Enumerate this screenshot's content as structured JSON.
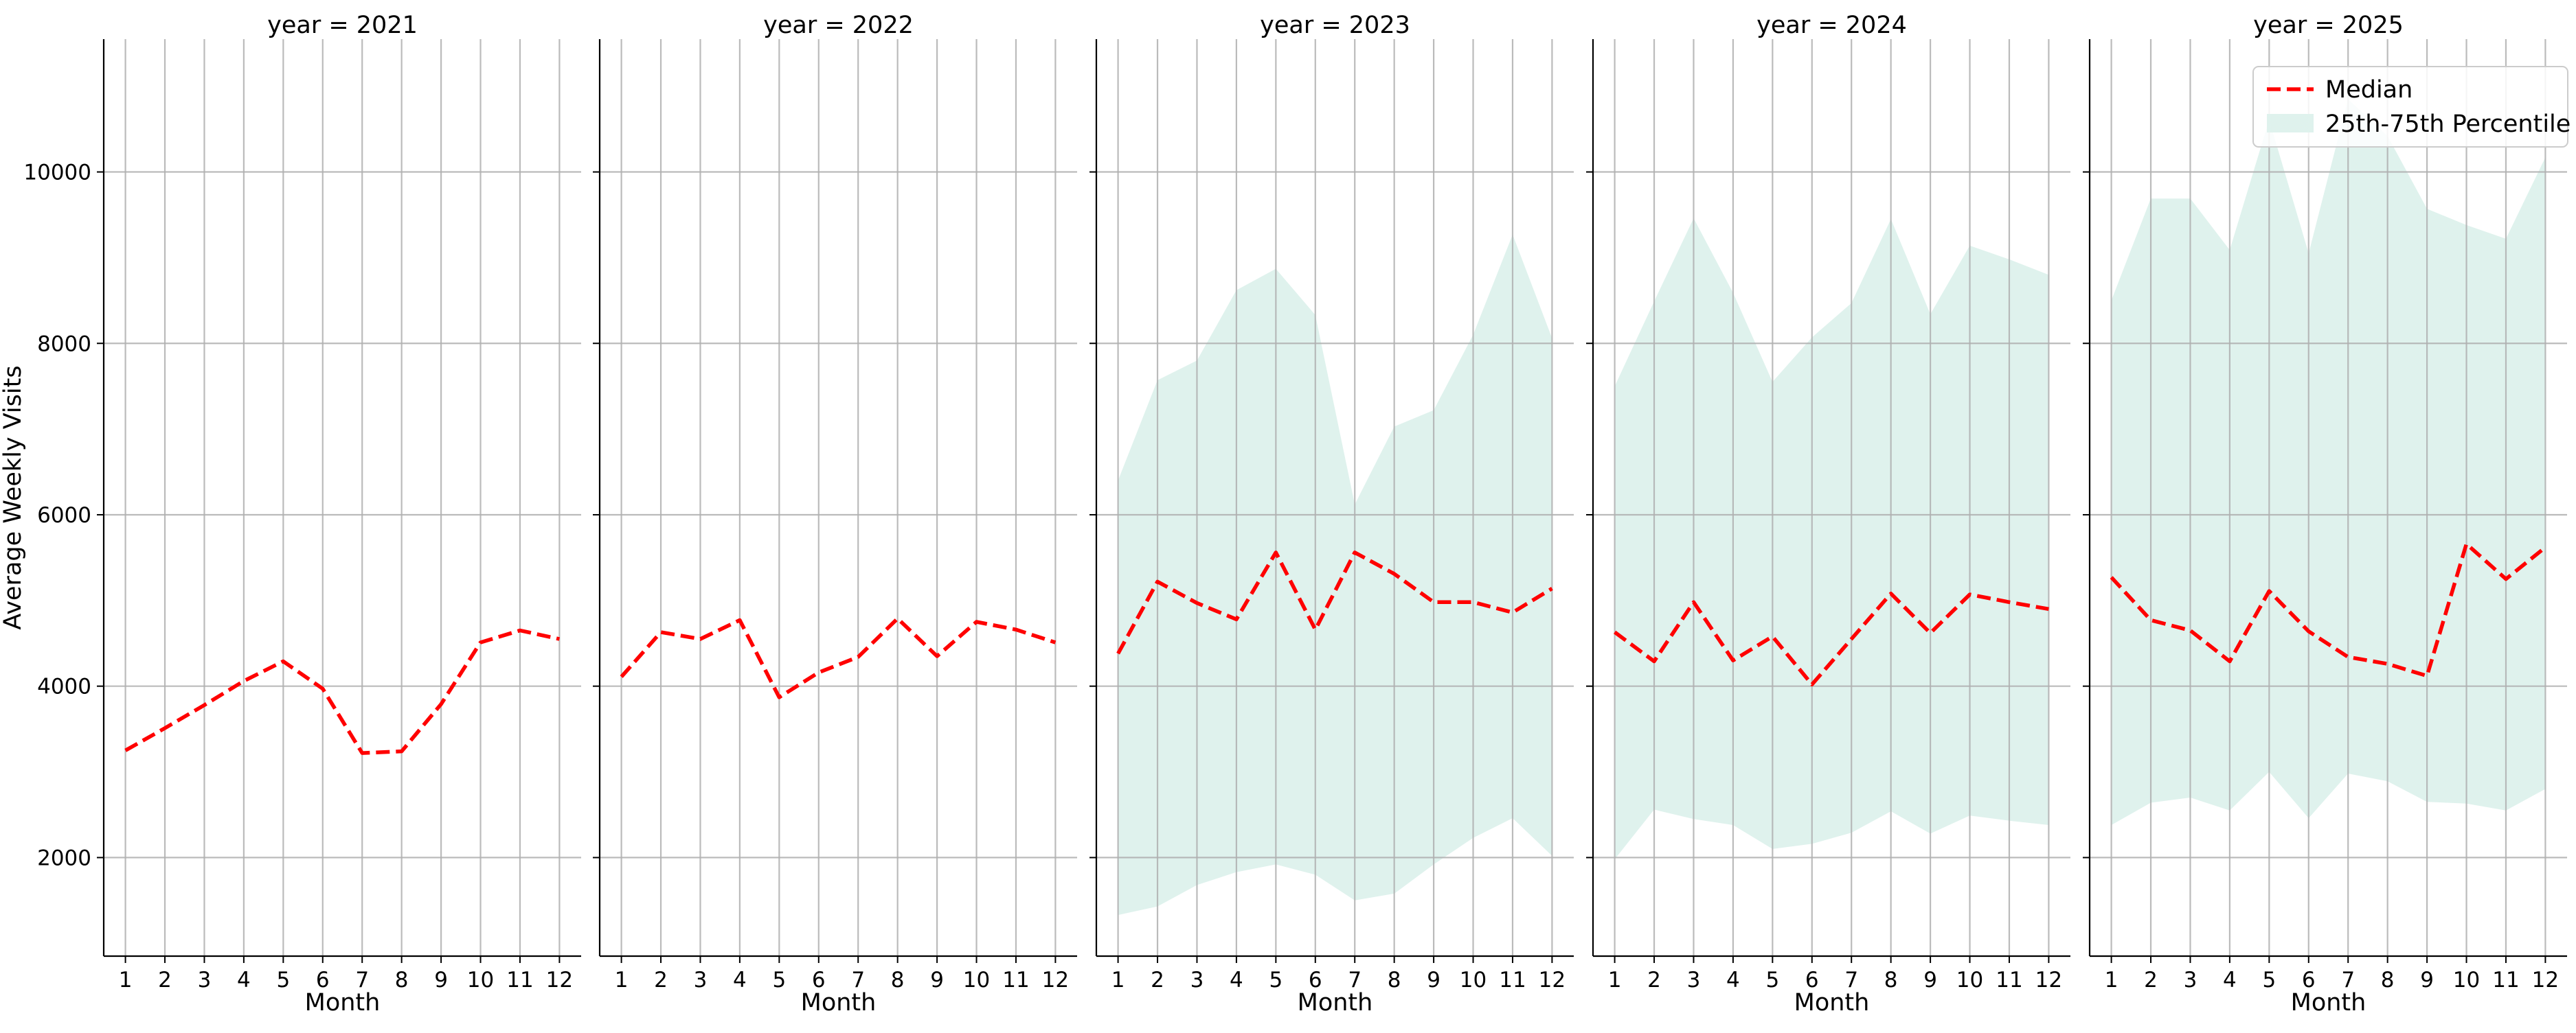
{
  "chart_data": {
    "type": "line",
    "ylabel": "Average Weekly Visits",
    "xlabel": "Month",
    "ylim": [
      850,
      11550
    ],
    "xlim": [
      0.45,
      12.55
    ],
    "y_ticks": [
      2000,
      4000,
      6000,
      8000,
      10000
    ],
    "x_ticks": [
      1,
      2,
      3,
      4,
      5,
      6,
      7,
      8,
      9,
      10,
      11,
      12
    ],
    "grid": true,
    "shared_y_axis": true,
    "legend": {
      "placement": "top-right",
      "entries": [
        {
          "label": "Median",
          "style": "dashed-line",
          "color": "#ff0000"
        },
        {
          "label": "25th-75th Percentile",
          "style": "band",
          "color": "#dff2ed"
        }
      ]
    },
    "panels": [
      {
        "title": "year = 2021",
        "x": [
          1,
          2,
          3,
          4,
          5,
          6,
          7,
          8,
          9,
          10,
          11,
          12
        ],
        "median": [
          3250,
          3510,
          3780,
          4060,
          4290,
          3970,
          3220,
          3240,
          3790,
          4510,
          4650,
          4550
        ],
        "p25": [],
        "p75": []
      },
      {
        "title": "year = 2022",
        "x": [
          1,
          2,
          3,
          4,
          5,
          6,
          7,
          8,
          9,
          10,
          11,
          12
        ],
        "median": [
          4110,
          4630,
          4550,
          4770,
          3870,
          4160,
          4340,
          4790,
          4350,
          4750,
          4660,
          4510
        ],
        "p25": [],
        "p75": []
      },
      {
        "title": "year = 2023",
        "x": [
          1,
          2,
          3,
          4,
          5,
          6,
          7,
          8,
          9,
          10,
          11,
          12
        ],
        "median": [
          4380,
          5220,
          4970,
          4780,
          5560,
          4660,
          5560,
          5310,
          4980,
          4980,
          4860,
          5140
        ],
        "p25": [
          1330,
          1430,
          1680,
          1830,
          1920,
          1800,
          1500,
          1580,
          1920,
          2230,
          2460,
          2020
        ],
        "p75": [
          6400,
          7570,
          7800,
          8620,
          8870,
          8330,
          6120,
          7030,
          7220,
          8100,
          9270,
          8060
        ]
      },
      {
        "title": "year = 2024",
        "x": [
          1,
          2,
          3,
          4,
          5,
          6,
          7,
          8,
          9,
          10,
          11,
          12
        ],
        "median": [
          4630,
          4290,
          4980,
          4300,
          4580,
          4020,
          4550,
          5080,
          4620,
          5070,
          4980,
          4900
        ],
        "p25": [
          1980,
          2560,
          2450,
          2380,
          2100,
          2160,
          2290,
          2540,
          2280,
          2490,
          2430,
          2380
        ],
        "p75": [
          7500,
          8490,
          9460,
          8590,
          7550,
          8070,
          8470,
          9450,
          8340,
          9140,
          8980,
          8800
        ]
      },
      {
        "title": "year = 2025",
        "x": [
          1,
          2,
          3,
          4,
          5,
          6,
          7,
          8,
          9,
          10,
          11,
          12
        ],
        "median": [
          5270,
          4770,
          4650,
          4290,
          5110,
          4640,
          4340,
          4260,
          4120,
          5660,
          5250,
          5620
        ],
        "p25": [
          2380,
          2640,
          2700,
          2550,
          3000,
          2460,
          2980,
          2890,
          2650,
          2630,
          2550,
          2800
        ],
        "p75": [
          8500,
          9690,
          9690,
          9090,
          10610,
          9050,
          10850,
          10420,
          9570,
          9380,
          9220,
          10170
        ]
      }
    ]
  }
}
